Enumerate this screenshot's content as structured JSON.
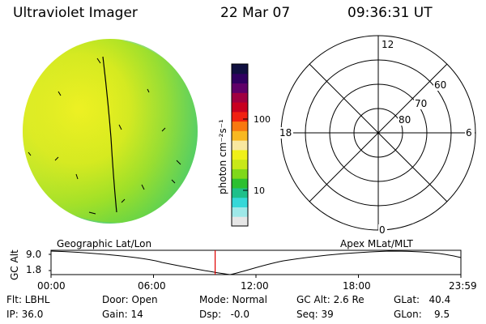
{
  "header": {
    "instrument": "Ultraviolet Imager",
    "date": "22 Mar 07",
    "time": "09:36:31 UT"
  },
  "colorbar": {
    "label": "photon cm⁻²s⁻¹",
    "ticks": [
      "100",
      "10"
    ],
    "colors": [
      "#e6e6e6",
      "#9ee8e8",
      "#35d8d8",
      "#1ec08a",
      "#2cc030",
      "#7fd81a",
      "#c8e818",
      "#f0f018",
      "#f8e8a0",
      "#f8b820",
      "#f87810",
      "#f02010",
      "#c80020",
      "#a00040",
      "#600068",
      "#300060",
      "#101040"
    ]
  },
  "polar": {
    "labels": [
      "12",
      "18",
      "6",
      "0",
      "60",
      "70",
      "80"
    ]
  },
  "timeline": {
    "axis_label": "GC Alt",
    "y_ticks": [
      "9.0",
      "1.8"
    ],
    "left_caption": "Geographic Lat/Lon",
    "right_caption": "Apex MLat/MLT",
    "x_ticks": [
      "00:00",
      "06:00",
      "12:00",
      "18:00",
      "23:59"
    ],
    "marker_time_hours": 9.61
  },
  "status": {
    "filter": "Flt: LBHL",
    "ip": "IP: 36.0",
    "door": "Door: Open",
    "gain": "Gain: 14",
    "mode": "Mode: Normal",
    "dsp": "Dsp:   -0.0",
    "gc_alt": "GC Alt: 2.6 Re",
    "seq": "Seq: 39",
    "glat": "GLat:   40.4",
    "glon": "GLon:    9.5"
  }
}
